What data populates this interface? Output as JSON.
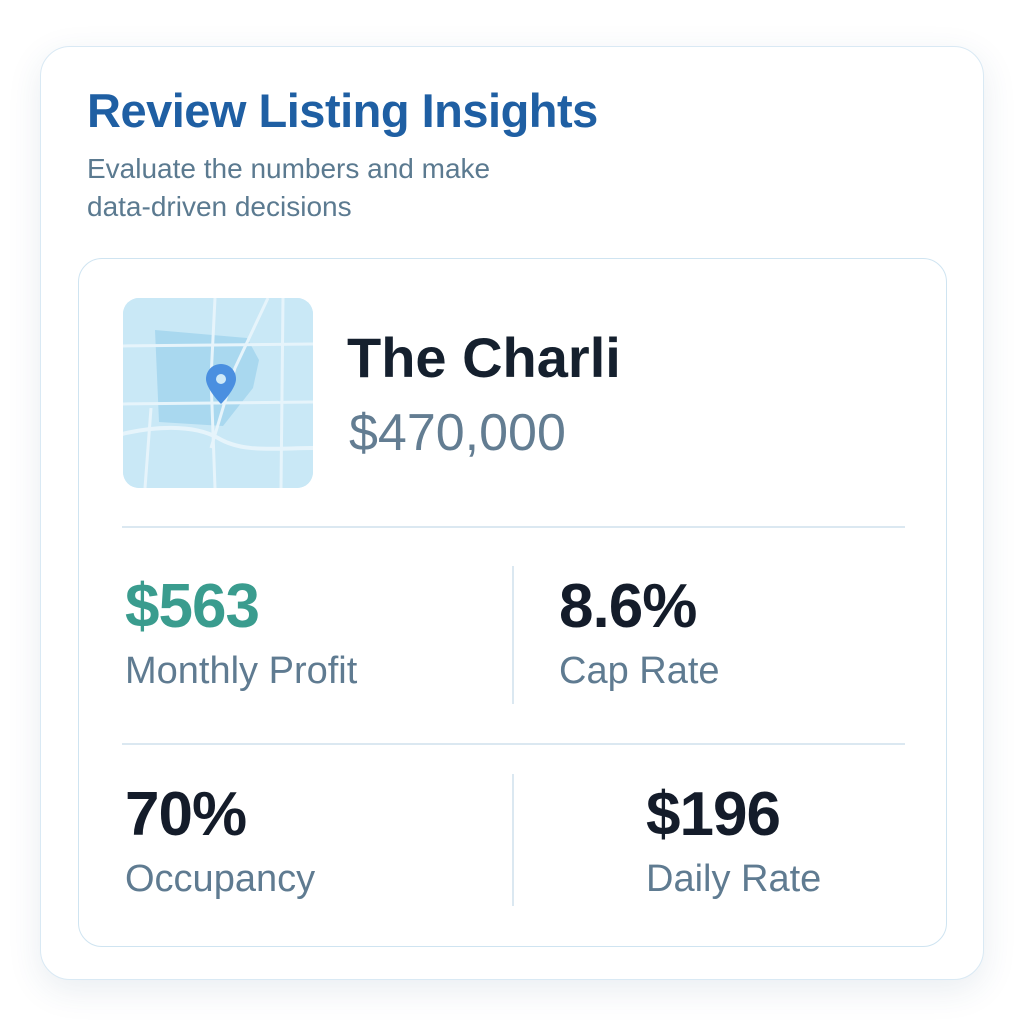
{
  "header": {
    "title": "Review Listing Insights",
    "subtitle": "Evaluate the numbers and make data-driven decisions"
  },
  "listing": {
    "name": "The Charli",
    "price": "$470,000",
    "map_icon": "map-thumbnail",
    "pin_icon": "location-pin-icon"
  },
  "metrics": {
    "monthly_profit": {
      "value": "$563",
      "label": "Monthly Profit"
    },
    "cap_rate": {
      "value": "8.6%",
      "label": "Cap Rate"
    },
    "occupancy": {
      "value": "70%",
      "label": "Occupancy"
    },
    "daily_rate": {
      "value": "$196",
      "label": "Daily Rate"
    }
  },
  "colors": {
    "title": "#1f5fa3",
    "profit": "#3a9c8e",
    "text_dark": "#141c2a",
    "text_muted": "#5f7b91",
    "map_water": "#c9e8f6",
    "pin": "#4a8fe0"
  }
}
